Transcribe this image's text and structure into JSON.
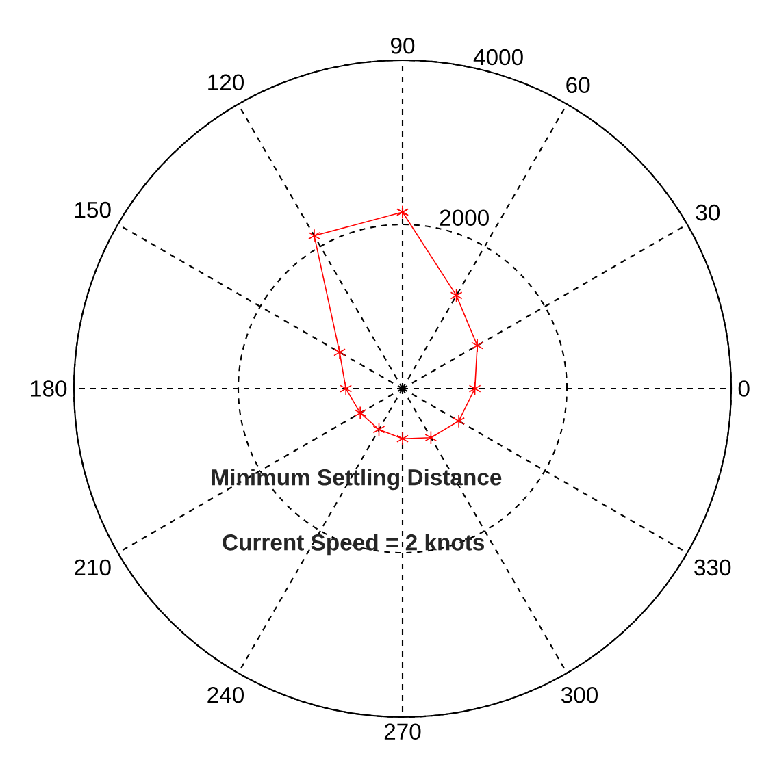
{
  "chart_data": {
    "type": "radar",
    "categories": [
      "90",
      "60",
      "30",
      "0",
      "330",
      "300",
      "270",
      "240",
      "210",
      "180",
      "150",
      "120"
    ],
    "series": [
      {
        "color": "#ff0000",
        "values": [
          2150,
          1310,
          1050,
          880,
          790,
          690,
          610,
          575,
          595,
          690,
          885,
          2150
        ]
      }
    ],
    "ylim": [
      0,
      4000
    ],
    "yticks": [
      2000,
      4000
    ],
    "grid": true,
    "marker": "star",
    "line_style": "solid",
    "annotations": [
      "Minimum Settling Distance",
      "Current Speed = 2 knots"
    ]
  }
}
